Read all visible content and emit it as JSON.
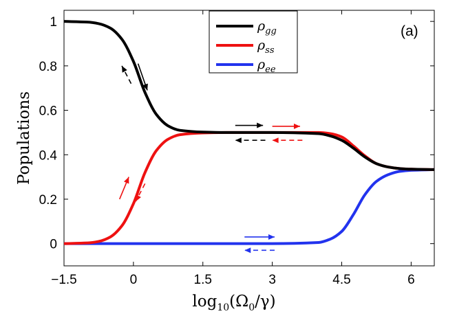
{
  "chart_data": {
    "type": "line",
    "panel_label": "(a)",
    "xlabel": "log10(Ω0/γ)",
    "xlabel_parts": {
      "fn": "log",
      "sub": "10",
      "arg": "(Ω",
      "arg_sub": "0",
      "tail": "/γ)"
    },
    "ylabel": "Populations",
    "xlim": [
      -1.5,
      6.5
    ],
    "ylim": [
      -0.1,
      1.05
    ],
    "xticks": [
      -1.5,
      0,
      1.5,
      3,
      4.5,
      6
    ],
    "xtick_labels": [
      "−1.5",
      "0",
      "1.5",
      "3",
      "4.5",
      "6"
    ],
    "yticks": [
      0,
      0.2,
      0.4,
      0.6,
      0.8,
      1
    ],
    "ytick_labels": [
      "0",
      "0.2",
      "0.4",
      "0.6",
      "0.8",
      "1"
    ],
    "grid": false,
    "legend_position": "top-center",
    "x": [
      -1.5,
      -1.0,
      -0.75,
      -0.5,
      -0.25,
      0.0,
      0.25,
      0.5,
      0.75,
      1.0,
      1.5,
      2.0,
      3.0,
      4.0,
      4.25,
      4.5,
      4.75,
      5.0,
      5.25,
      5.5,
      5.75,
      6.0,
      6.5
    ],
    "series": [
      {
        "name": "ρgg",
        "label_main": "ρ",
        "label_sub": "gg",
        "color": "#000000",
        "values": [
          1.0,
          0.997,
          0.99,
          0.97,
          0.92,
          0.82,
          0.68,
          0.58,
          0.53,
          0.51,
          0.502,
          0.5,
          0.5,
          0.495,
          0.485,
          0.465,
          0.43,
          0.39,
          0.36,
          0.345,
          0.338,
          0.335,
          0.333
        ]
      },
      {
        "name": "ρss",
        "label_main": "ρ",
        "label_sub": "ss",
        "color": "#ee1111",
        "values": [
          0.0,
          0.003,
          0.01,
          0.03,
          0.08,
          0.18,
          0.32,
          0.42,
          0.47,
          0.49,
          0.498,
          0.5,
          0.5,
          0.5,
          0.495,
          0.48,
          0.44,
          0.395,
          0.36,
          0.345,
          0.338,
          0.335,
          0.333
        ]
      },
      {
        "name": "ρee",
        "label_main": "ρ",
        "label_sub": "ee",
        "color": "#2233ee",
        "values": [
          0.0,
          0.0,
          0.0,
          0.0,
          0.0,
          0.0,
          0.0,
          0.0,
          0.0,
          0.0,
          0.0,
          0.0,
          0.0,
          0.005,
          0.02,
          0.055,
          0.13,
          0.22,
          0.28,
          0.31,
          0.325,
          0.33,
          0.333
        ]
      }
    ],
    "annotations": [
      {
        "desc": "black solid arrow down-right",
        "color": "#000000",
        "dashed": false,
        "x1": 0.1,
        "y1": 0.81,
        "x2": 0.3,
        "y2": 0.69
      },
      {
        "desc": "black dashed arrow up-left",
        "color": "#000000",
        "dashed": true,
        "x1": -0.05,
        "y1": 0.72,
        "x2": -0.25,
        "y2": 0.8
      },
      {
        "desc": "red solid arrow up-right",
        "color": "#ee1111",
        "dashed": false,
        "x1": -0.3,
        "y1": 0.2,
        "x2": -0.1,
        "y2": 0.3
      },
      {
        "desc": "red dashed arrow down-left",
        "color": "#ee1111",
        "dashed": true,
        "x1": 0.25,
        "y1": 0.27,
        "x2": 0.05,
        "y2": 0.19
      },
      {
        "desc": "black solid arrow right",
        "color": "#000000",
        "dashed": false,
        "x1": 2.2,
        "y1": 0.532,
        "x2": 2.8,
        "y2": 0.532
      },
      {
        "desc": "red solid arrow right",
        "color": "#ee1111",
        "dashed": false,
        "x1": 3.0,
        "y1": 0.528,
        "x2": 3.6,
        "y2": 0.528
      },
      {
        "desc": "black dashed arrow left",
        "color": "#000000",
        "dashed": true,
        "x1": 2.85,
        "y1": 0.465,
        "x2": 2.2,
        "y2": 0.465
      },
      {
        "desc": "red dashed arrow left",
        "color": "#ee1111",
        "dashed": true,
        "x1": 3.65,
        "y1": 0.465,
        "x2": 3.0,
        "y2": 0.465
      },
      {
        "desc": "blue solid arrow right",
        "color": "#2233ee",
        "dashed": false,
        "x1": 2.4,
        "y1": 0.03,
        "x2": 3.05,
        "y2": 0.03
      },
      {
        "desc": "blue dashed arrow left",
        "color": "#2233ee",
        "dashed": true,
        "x1": 3.05,
        "y1": -0.03,
        "x2": 2.4,
        "y2": -0.03
      }
    ]
  }
}
